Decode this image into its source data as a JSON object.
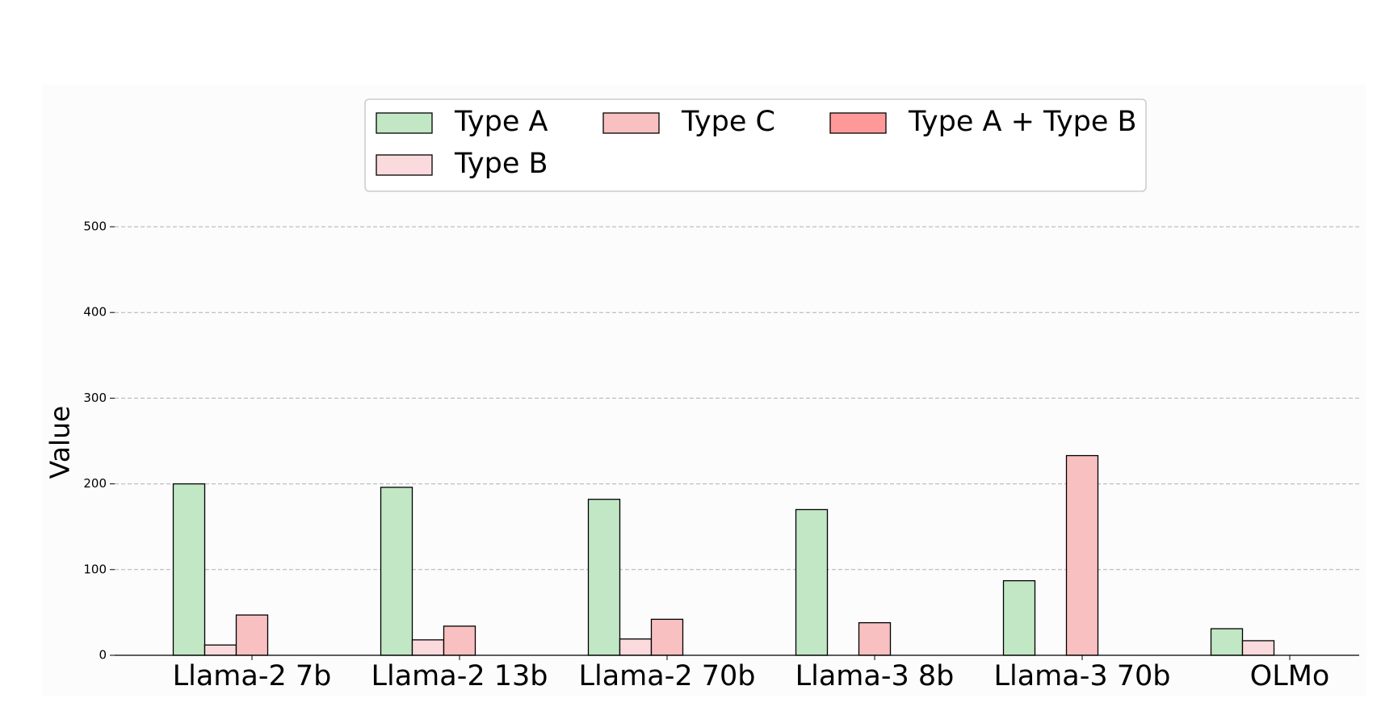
{
  "chart_data": {
    "type": "bar",
    "y_label": "Value",
    "categories": [
      "Llama-2 7b",
      "Llama-2 13b",
      "Llama-2 70b",
      "Llama-3 8b",
      "Llama-3 70b",
      "OLMo"
    ],
    "series": [
      {
        "name": "Type A",
        "color": "#c1e7c5",
        "values": [
          200,
          196,
          182,
          170,
          87,
          31
        ]
      },
      {
        "name": "Type B",
        "color": "#fadadd",
        "values": [
          12,
          18,
          19,
          0,
          0,
          17
        ]
      },
      {
        "name": "Type C",
        "color": "#f8c0c0",
        "values": [
          47,
          34,
          42,
          38,
          233,
          0
        ]
      },
      {
        "name": "Type A + Type B",
        "color": "#ff9999",
        "values": [
          0,
          0,
          0,
          0,
          0,
          0
        ]
      }
    ],
    "ylim": [
      0,
      500
    ],
    "yticks": [
      0,
      100,
      200,
      300,
      400,
      500
    ],
    "grid": true,
    "legend": "top"
  }
}
